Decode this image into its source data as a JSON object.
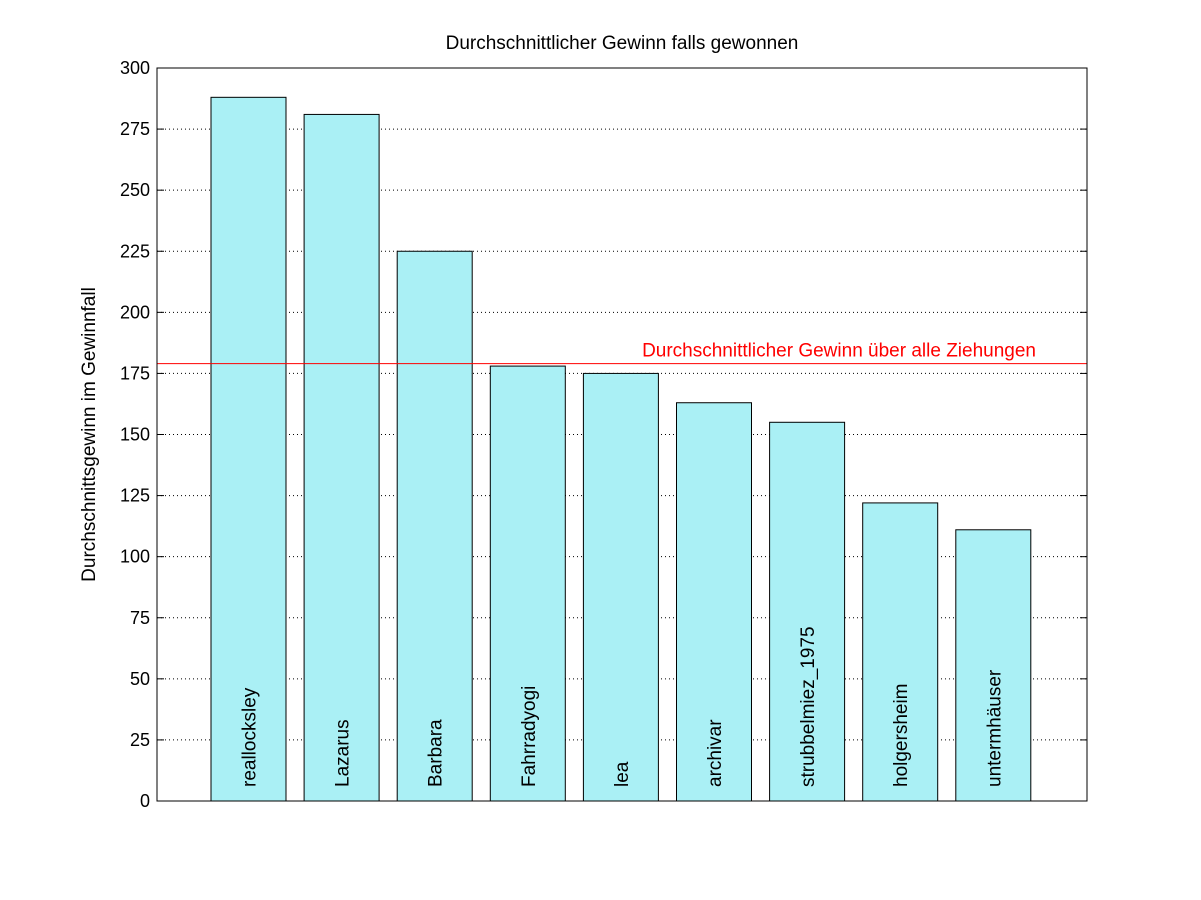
{
  "chart_data": {
    "type": "bar",
    "title": "Durchschnittlicher Gewinn falls gewonnen",
    "xlabel": "",
    "ylabel": "Durchschnittsgewinn im Gewinnfall",
    "ylim": [
      0,
      300
    ],
    "yticks": [
      0,
      25,
      50,
      75,
      100,
      125,
      150,
      175,
      200,
      225,
      250,
      275,
      300
    ],
    "grid": true,
    "categories": [
      "reallocksley",
      "Lazarus",
      "Barbara",
      "Fahrradyogi",
      "lea",
      "archivar",
      "strubbelmiez_1975",
      "holgersheim",
      "untermhäuser"
    ],
    "values": [
      288,
      281,
      225,
      178,
      175,
      163,
      155,
      122,
      111
    ],
    "bar_color": "#aaf0f5",
    "reference_line": {
      "label": "Durchschnittlicher Gewinn über alle Ziehungen",
      "value": 179,
      "color": "#ff0000"
    }
  }
}
